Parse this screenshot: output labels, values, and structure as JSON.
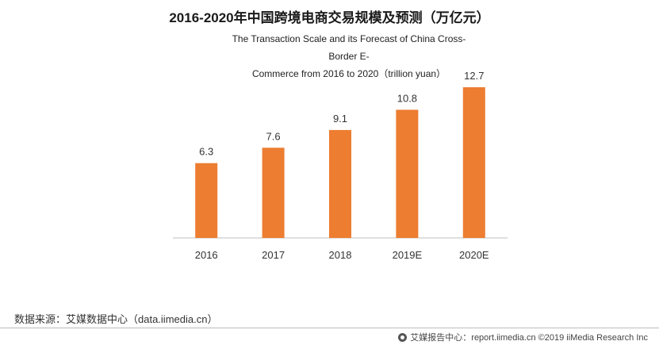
{
  "chart_data": {
    "type": "bar",
    "title": "2016-2020年中国跨境电商交易规模及预测（万亿元）",
    "subtitle_lines": [
      "The Transaction Scale and its Forecast of China Cross-Border E-",
      "Commerce from 2016 to 2020（trillion yuan）"
    ],
    "categories": [
      "2016",
      "2017",
      "2018",
      "2019E",
      "2020E"
    ],
    "values": [
      6.3,
      7.6,
      9.1,
      10.8,
      12.7
    ],
    "value_labels": [
      "6.3",
      "7.6",
      "9.1",
      "10.8",
      "12.7"
    ],
    "xlabel": "",
    "ylabel": "",
    "ylim": [
      0,
      12.7
    ],
    "grid": false,
    "bar_color": "#ED7D31"
  },
  "source": "数据来源：艾媒数据中心（data.iimedia.cn）",
  "footer": {
    "icon": "iimedia-logo-icon",
    "text": "艾媒报告中心：report.iimedia.cn  ©2019  iiMedia Research  Inc"
  },
  "colors": {
    "axis": "#bfbfbf",
    "rule": "#bdbdbd"
  }
}
